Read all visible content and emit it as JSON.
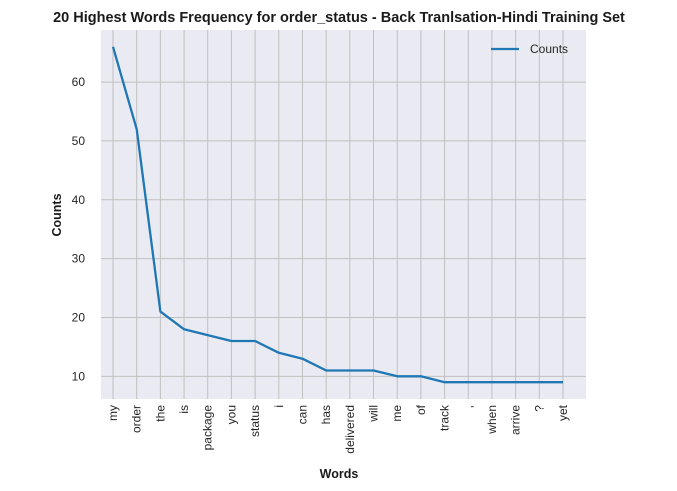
{
  "chart_data": {
    "type": "line",
    "title": "20 Highest Words Frequency for order_status - Back Tranlsation-Hindi Training Set",
    "xlabel": "Words",
    "ylabel": "Counts",
    "categories": [
      "my",
      "order",
      "the",
      "is",
      "package",
      "you",
      "status",
      "i",
      "can",
      "has",
      "delivered",
      "will",
      "me",
      "of",
      "track",
      ",",
      "when",
      "arrive",
      "?",
      "yet"
    ],
    "series": [
      {
        "name": "Counts",
        "values": [
          66,
          52,
          21,
          18,
          17,
          16,
          16,
          14,
          13,
          11,
          11,
          11,
          10,
          10,
          9,
          9,
          9,
          9,
          9,
          9
        ]
      }
    ],
    "yticks": [
      10,
      20,
      30,
      40,
      50,
      60
    ],
    "ylim": [
      6.15,
      68.85
    ],
    "grid": true,
    "legend_position": "top-right",
    "colors": {
      "line": "#1f77b4",
      "background": "#eaeaf2",
      "grid": "#c0c0c0"
    }
  }
}
